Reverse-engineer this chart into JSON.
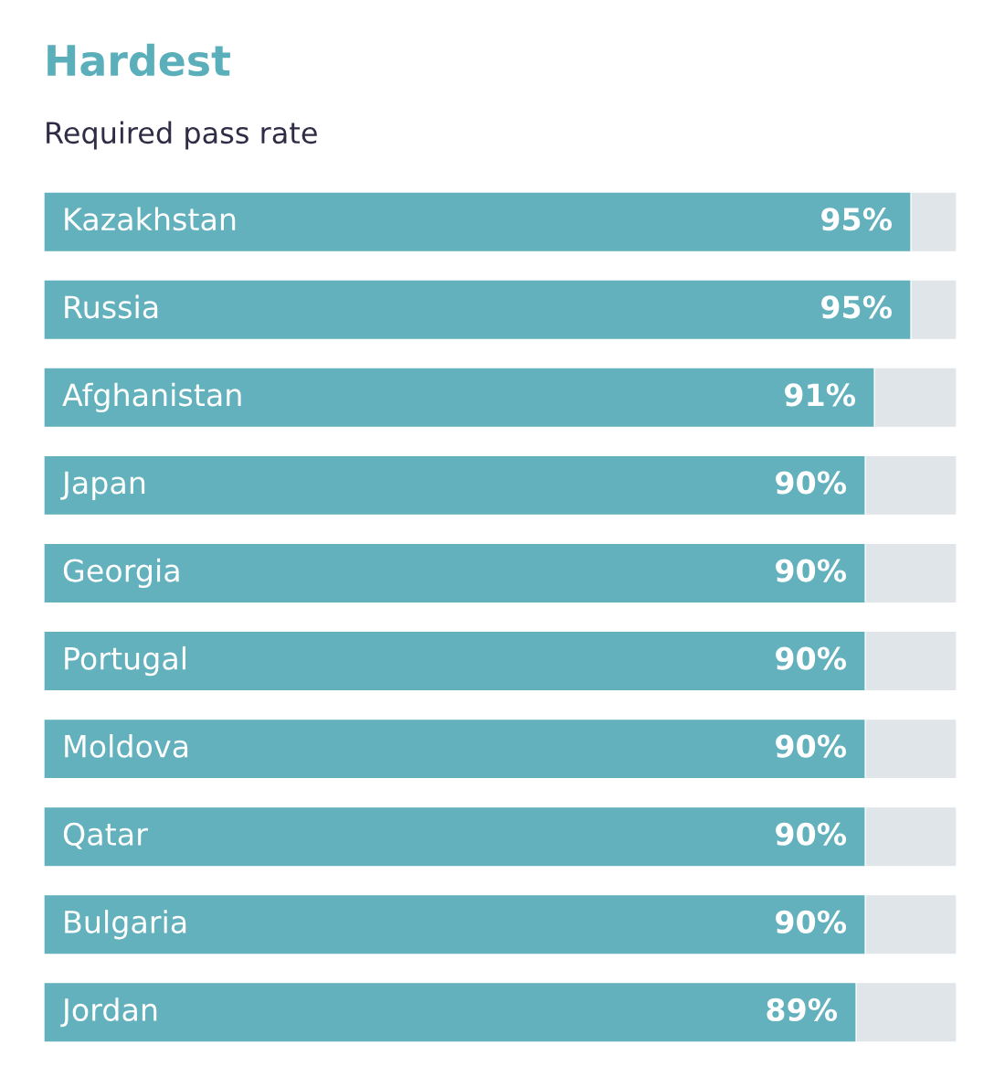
{
  "chart_data": {
    "type": "bar",
    "orientation": "horizontal",
    "title": "Hardest",
    "subtitle": "Required pass rate",
    "categories": [
      "Kazakhstan",
      "Russia",
      "Afghanistan",
      "Japan",
      "Georgia",
      "Portugal",
      "Moldova",
      "Qatar",
      "Bulgaria",
      "Jordan"
    ],
    "values": [
      95,
      95,
      91,
      90,
      90,
      90,
      90,
      90,
      90,
      89
    ],
    "value_labels": [
      "95%",
      "95%",
      "91%",
      "90%",
      "90%",
      "90%",
      "90%",
      "90%",
      "90%",
      "89%"
    ],
    "color": "#62b1bd",
    "xlim": [
      0,
      100
    ],
    "tick_labels": false
  }
}
